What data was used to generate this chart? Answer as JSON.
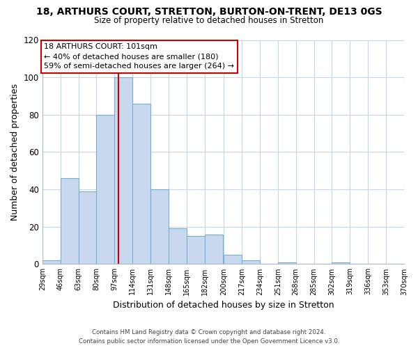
{
  "title_line1": "18, ARTHURS COURT, STRETTON, BURTON-ON-TRENT, DE13 0GS",
  "title_line2": "Size of property relative to detached houses in Stretton",
  "xlabel": "Distribution of detached houses by size in Stretton",
  "ylabel": "Number of detached properties",
  "bar_edges": [
    29,
    46,
    63,
    80,
    97,
    114,
    131,
    148,
    165,
    182,
    200,
    217,
    234,
    251,
    268,
    285,
    302,
    319,
    336,
    353,
    370
  ],
  "bar_heights": [
    2,
    46,
    39,
    80,
    100,
    86,
    40,
    19,
    15,
    16,
    5,
    2,
    0,
    1,
    0,
    0,
    1,
    0,
    0,
    0
  ],
  "bar_color": "#c8d8ee",
  "bar_edge_color": "#7aafd4",
  "property_line_x": 101,
  "property_line_color": "#cc0000",
  "ylim": [
    0,
    120
  ],
  "yticks": [
    0,
    20,
    40,
    60,
    80,
    100,
    120
  ],
  "annotation_title": "18 ARTHURS COURT: 101sqm",
  "annotation_line1": "← 40% of detached houses are smaller (180)",
  "annotation_line2": "59% of semi-detached houses are larger (264) →",
  "annotation_box_color": "#ffffff",
  "annotation_box_edge": "#cc0000",
  "footer_line1": "Contains HM Land Registry data © Crown copyright and database right 2024.",
  "footer_line2": "Contains public sector information licensed under the Open Government Licence v3.0.",
  "tick_labels": [
    "29sqm",
    "46sqm",
    "63sqm",
    "80sqm",
    "97sqm",
    "114sqm",
    "131sqm",
    "148sqm",
    "165sqm",
    "182sqm",
    "200sqm",
    "217sqm",
    "234sqm",
    "251sqm",
    "268sqm",
    "285sqm",
    "302sqm",
    "319sqm",
    "336sqm",
    "353sqm",
    "370sqm"
  ],
  "background_color": "#ffffff",
  "grid_color": "#c8d4e8"
}
